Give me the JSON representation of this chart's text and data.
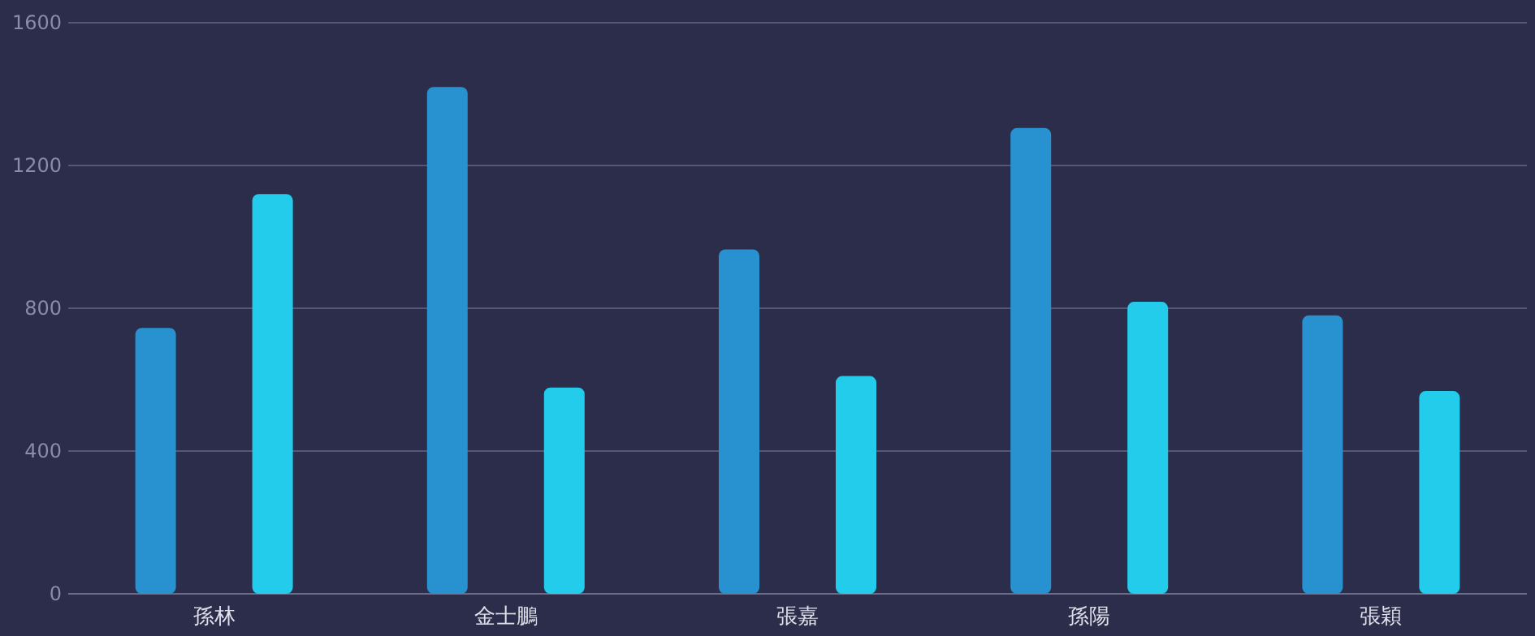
{
  "chart_data": {
    "type": "bar",
    "categories": [
      "孫林",
      "金士鵬",
      "張嘉",
      "孫陽",
      "張穎"
    ],
    "series": [
      {
        "color": "#2891cf",
        "values": [
          745,
          1420,
          965,
          1305,
          780
        ]
      },
      {
        "color": "#24cceb",
        "values": [
          1120,
          578,
          610,
          818,
          568
        ]
      }
    ],
    "ylim": [
      0,
      1600
    ],
    "yticks": [
      0,
      400,
      800,
      1200,
      1600
    ],
    "grid": "y"
  }
}
